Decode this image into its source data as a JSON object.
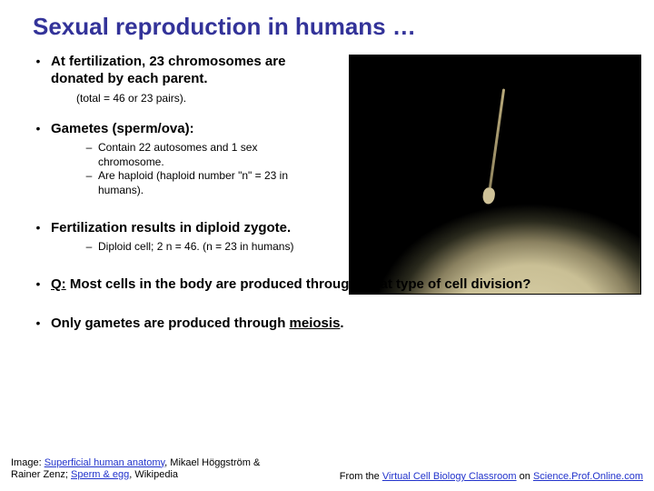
{
  "title": "Sexual reproduction in humans …",
  "bullets": {
    "b1": {
      "text": "At fertilization, 23 chromosomes are donated by each parent.",
      "annot": "(total = 46 or 23 pairs)."
    },
    "b2": {
      "text": "Gametes (sperm/ova):",
      "subs": {
        "s1": "Contain 22 autosomes and 1 sex chromosome.",
        "s2": "Are haploid (haploid number \"n\" = 23 in humans)."
      }
    },
    "b3": {
      "text": "Fertilization results in diploid zygote.",
      "subs": {
        "s1": "Diploid cell; 2 n = 46.  (n = 23 in humans)"
      }
    },
    "b4": {
      "prefix": "Q:",
      "text": "Most cells in the body are produced through what type of cell division?"
    },
    "b5": {
      "pre": "Only gametes are produced through ",
      "bold": "meiosis",
      "post": "."
    }
  },
  "footer": {
    "left_pre": "Image: ",
    "left_link1": "Superficial human anatomy",
    "left_mid": ", Mikael Höggström & Rainer Zenz; ",
    "left_link2": "Sperm & egg",
    "left_post": ", Wikipedia",
    "right_pre": "From the ",
    "right_link1": "Virtual Cell Biology Classroom",
    "right_mid": " on ",
    "right_link2": "Science.Prof.Online.com"
  },
  "colors": {
    "title": "#333399",
    "link": "#2233cc",
    "bg": "#ffffff"
  }
}
